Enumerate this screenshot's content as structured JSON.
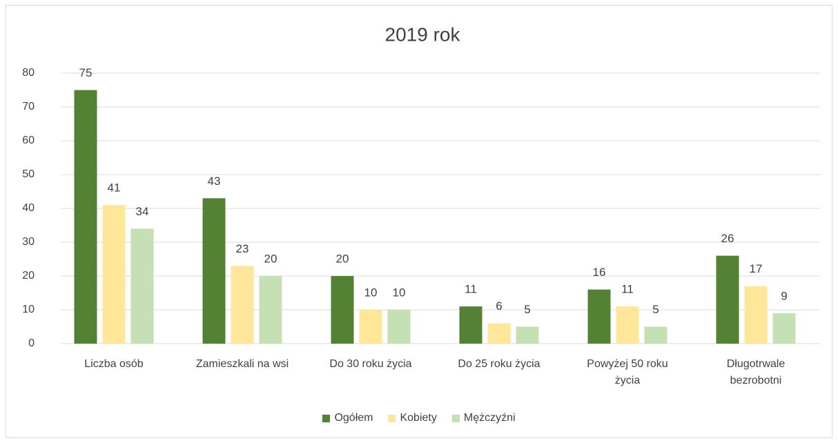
{
  "chart_data": {
    "type": "bar",
    "title": "2019 rok",
    "categories": [
      "Liczba osób",
      "Zamieszkali na wsi",
      "Do 30 roku życia",
      "Do 25 roku życia",
      "Powyżej 50 roku życia",
      "Długotrwale bezrobotni"
    ],
    "series": [
      {
        "name": "Ogółem",
        "color": "#548235",
        "values": [
          75,
          43,
          20,
          11,
          16,
          26
        ]
      },
      {
        "name": "Kobiety",
        "color": "#ffe699",
        "values": [
          41,
          23,
          10,
          6,
          11,
          17
        ]
      },
      {
        "name": "Mężczyźni",
        "color": "#c5e0b4",
        "values": [
          34,
          20,
          10,
          5,
          5,
          9
        ]
      }
    ],
    "ylim": [
      0,
      80
    ],
    "yticks": [
      0,
      10,
      20,
      30,
      40,
      50,
      60,
      70,
      80
    ],
    "grid": true,
    "legend": "bottom"
  }
}
